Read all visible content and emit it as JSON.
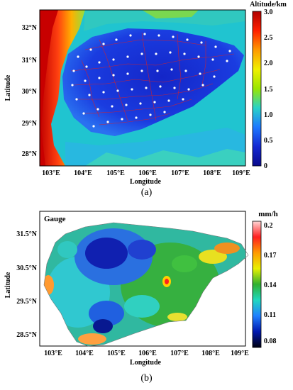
{
  "panel_a": {
    "caption": "(a)",
    "xlabel": "Longitude",
    "ylabel": "Latitude",
    "x_ticks": [
      "103°E",
      "104°E",
      "105°E",
      "106°E",
      "107°E",
      "108°E",
      "109°E"
    ],
    "y_ticks": [
      "32°N",
      "31°N",
      "30°N",
      "29°N",
      "28°N"
    ],
    "colorbar_title": "Altitude/km",
    "colorbar_ticks": [
      "3.0",
      "2.5",
      "2.0",
      "1.5",
      "1.0",
      "0.5",
      "0"
    ],
    "colorbar_colors": [
      "#b00000",
      "#ff2000",
      "#ff9a00",
      "#f0f000",
      "#9ae600",
      "#28d2c8",
      "#1e78ff",
      "#1428d2",
      "#0a0a8c"
    ]
  },
  "panel_b": {
    "caption": "(b)",
    "map_label": "Gauge",
    "xlabel": "Longitude",
    "ylabel": "Latitude",
    "x_ticks": [
      "103°E",
      "104°E",
      "105°E",
      "106°E",
      "107°E",
      "108°E",
      "109°E"
    ],
    "y_ticks": [
      "31.5°N",
      "30.5°N",
      "29.5°N",
      "28.5°N"
    ],
    "colorbar_title": "mm/h",
    "colorbar_ticks": [
      "0.2",
      "0.17",
      "0.14",
      "0.11",
      "0.08"
    ],
    "colorbar_colors": [
      "#ffd6d6",
      "#ff2020",
      "#ff9a00",
      "#e8f000",
      "#30b030",
      "#20d8c0",
      "#2080ff",
      "#0018b0",
      "#000010"
    ]
  }
}
